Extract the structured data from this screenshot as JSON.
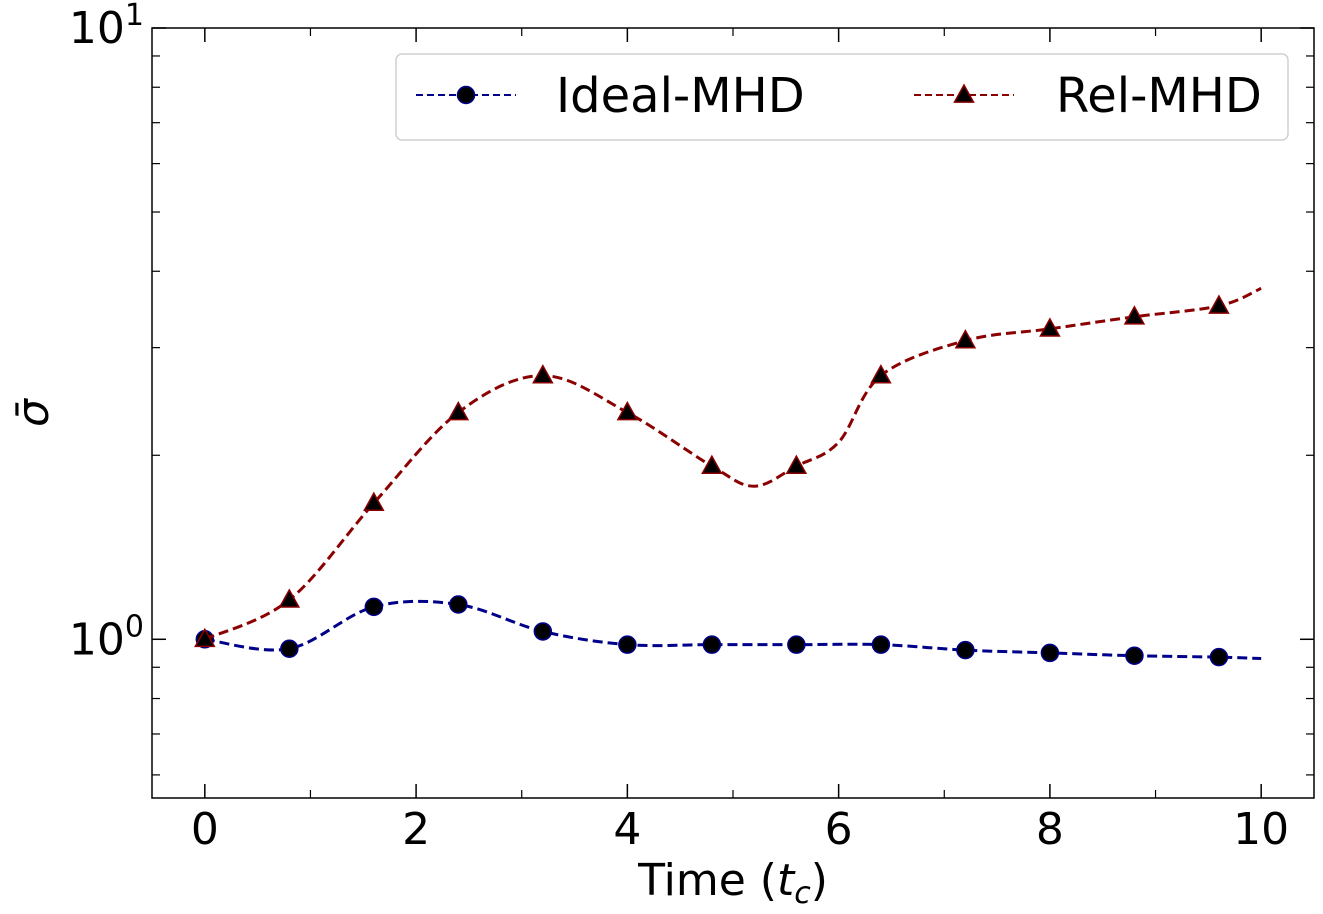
{
  "chart_data": {
    "type": "line",
    "title": "",
    "xlabel": "Time",
    "xlabel_italic": "t",
    "xlabel_sub": "c",
    "ylabel": "σ̄",
    "yscale": "log",
    "xlim": [
      -0.5,
      10.5
    ],
    "ylim": [
      0.55,
      10
    ],
    "x_ticks": [
      "0",
      "2",
      "4",
      "6",
      "8",
      "10"
    ],
    "y_ticks": [
      {
        "base": "10",
        "exp": "0",
        "value": 1
      },
      {
        "base": "10",
        "exp": "1",
        "value": 10
      }
    ],
    "grid": false,
    "legend_position": "top-right",
    "series": [
      {
        "name": "Ideal-MHD",
        "color": "#00008b",
        "marker": "circle",
        "x": [
          0,
          0.8,
          1.6,
          2.4,
          3.2,
          4.0,
          4.8,
          5.6,
          6.4,
          7.2,
          8.0,
          8.8,
          9.6,
          10.0
        ],
        "y": [
          1.0,
          0.965,
          1.13,
          1.14,
          1.03,
          0.98,
          0.98,
          0.98,
          0.98,
          0.96,
          0.95,
          0.94,
          0.935,
          0.93
        ],
        "markers_x": [
          0,
          0.8,
          1.6,
          2.4,
          3.2,
          4.0,
          4.8,
          5.6,
          6.4,
          7.2,
          8.0,
          8.8,
          9.6
        ],
        "markers_y": [
          1.0,
          0.965,
          1.13,
          1.14,
          1.03,
          0.98,
          0.98,
          0.98,
          0.98,
          0.96,
          0.95,
          0.94,
          0.935
        ]
      },
      {
        "name": "Rel-MHD",
        "color": "#8b0000",
        "marker": "triangle",
        "x": [
          0,
          0.8,
          1.6,
          2.4,
          3.2,
          4.0,
          4.8,
          5.2,
          5.6,
          6.0,
          6.4,
          7.2,
          8.0,
          8.8,
          9.6,
          10.0
        ],
        "y": [
          1.0,
          1.16,
          1.67,
          2.35,
          2.7,
          2.35,
          1.92,
          1.78,
          1.92,
          2.1,
          2.7,
          3.08,
          3.22,
          3.37,
          3.51,
          3.75
        ],
        "markers_x": [
          0,
          0.8,
          1.6,
          2.4,
          3.2,
          4.0,
          4.8,
          5.6,
          6.4,
          7.2,
          8.0,
          8.8,
          9.6
        ],
        "markers_y": [
          1.0,
          1.16,
          1.67,
          2.35,
          2.7,
          2.35,
          1.92,
          1.92,
          2.7,
          3.08,
          3.22,
          3.37,
          3.51
        ]
      }
    ]
  }
}
